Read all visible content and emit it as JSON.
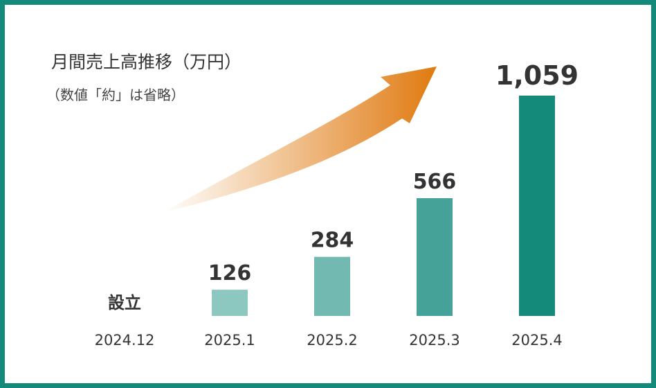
{
  "chart_data": {
    "type": "bar",
    "title": "月間売上高推移（万円）",
    "subtitle": "（数値「約」は省略）",
    "categories": [
      "2024.12",
      "2025.1",
      "2025.2",
      "2025.3",
      "2025.4"
    ],
    "values": [
      null,
      126,
      284,
      566,
      1059
    ],
    "value_labels": [
      "設立",
      "126",
      "284",
      "566",
      "1,059"
    ],
    "bar_colors": [
      "#ffffff",
      "#8cc7c0",
      "#72b9b1",
      "#45a298",
      "#148a7a"
    ],
    "accent_arrow_color": "#e07a10",
    "frame_color": "#148a7a",
    "grid": false,
    "legend": "none"
  }
}
